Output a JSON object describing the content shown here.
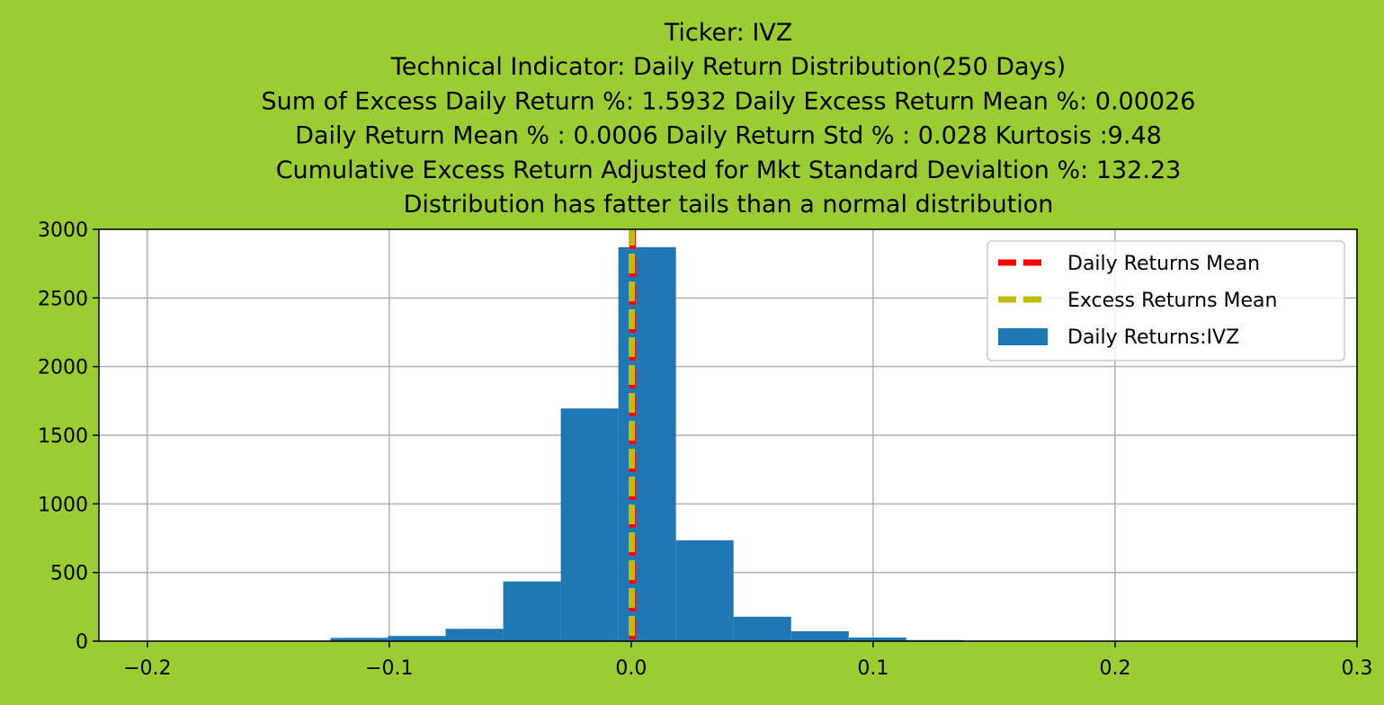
{
  "chart_data": {
    "type": "bar",
    "title_lines": [
      "Ticker: IVZ",
      "Technical Indicator: Daily Return Distribution(250 Days)",
      "Sum of Excess Daily Return %: 1.5932   Daily Excess Return Mean %: 0.00026",
      "Daily Return Mean % : 0.0006    Daily Return Std % : 0.028  Kurtosis :9.48",
      "Cumulative Excess Return Adjusted for Mkt Standard Devialtion %: 132.23",
      "Distribution has fatter tails than a normal distribution"
    ],
    "xlim": [
      -0.22,
      0.3
    ],
    "ylim": [
      0,
      3000
    ],
    "xticks": [
      -0.2,
      -0.1,
      0.0,
      0.1,
      0.2,
      0.3
    ],
    "xtick_labels": [
      "−0.2",
      "−0.1",
      "0.0",
      "0.1",
      "0.2",
      "0.3"
    ],
    "yticks": [
      0,
      500,
      1000,
      1500,
      2000,
      2500,
      3000
    ],
    "ytick_labels": [
      "0",
      "500",
      "1000",
      "1500",
      "2000",
      "2500",
      "3000"
    ],
    "grid": true,
    "legend_position": "top-right",
    "series": [
      {
        "name": "Daily Returns:IVZ",
        "kind": "histogram",
        "color": "#1f77b4",
        "bins": [
          {
            "x0": -0.1243,
            "x1": -0.1005,
            "count": 24
          },
          {
            "x0": -0.1005,
            "x1": -0.0767,
            "count": 38
          },
          {
            "x0": -0.0767,
            "x1": -0.0529,
            "count": 90
          },
          {
            "x0": -0.0529,
            "x1": -0.0291,
            "count": 435
          },
          {
            "x0": -0.0291,
            "x1": -0.0053,
            "count": 1695
          },
          {
            "x0": -0.0053,
            "x1": 0.0185,
            "count": 2870
          },
          {
            "x0": 0.0185,
            "x1": 0.0423,
            "count": 735
          },
          {
            "x0": 0.0423,
            "x1": 0.0661,
            "count": 178
          },
          {
            "x0": 0.0661,
            "x1": 0.0899,
            "count": 72
          },
          {
            "x0": 0.0899,
            "x1": 0.1137,
            "count": 26
          },
          {
            "x0": 0.1137,
            "x1": 0.1375,
            "count": 8
          }
        ]
      },
      {
        "name": "Daily Returns Mean",
        "kind": "vline",
        "x": 0.0006,
        "color": "#ff0000",
        "style": "dashed"
      },
      {
        "name": "Excess Returns Mean",
        "kind": "vline",
        "x": 0.00026,
        "color": "#bfbf00",
        "style": "dashed"
      }
    ]
  }
}
